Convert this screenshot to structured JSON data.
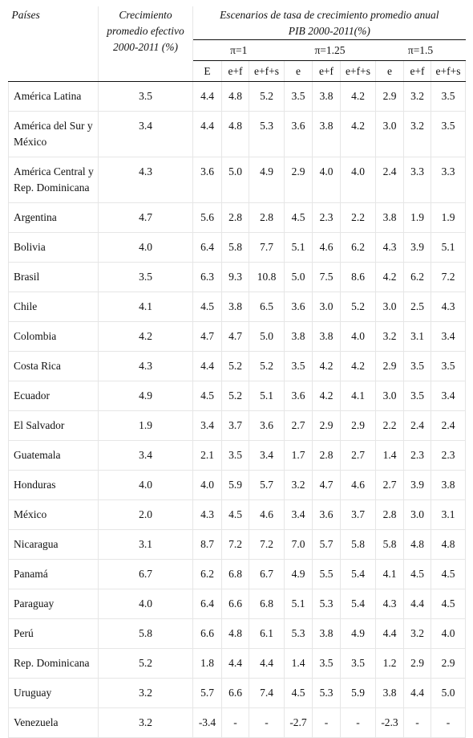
{
  "headers": {
    "country": "Países",
    "growth": "Crecimiento promedio efectivo 2000-2011 (%)",
    "scenarios_line1": "Escenarios de tasa de crecimiento promedio anual",
    "scenarios_line2": "PIB 2000-2011(%)",
    "pi_groups": [
      "π=1",
      "π=1.25",
      "π=1.5"
    ],
    "sub_cols": [
      "E",
      "e+f",
      "e+f+s",
      "e",
      "e+f",
      "e+f+s",
      "e",
      "e+f",
      "e+f+s"
    ]
  },
  "rows": [
    {
      "country": "América Latina",
      "growth": "3.5",
      "values": [
        "4.4",
        "4.8",
        "5.2",
        "3.5",
        "3.8",
        "4.2",
        "2.9",
        "3.2",
        "3.5"
      ]
    },
    {
      "country": "América del Sur y México",
      "growth": "3.4",
      "values": [
        "4.4",
        "4.8",
        "5.3",
        "3.6",
        "3.8",
        "4.2",
        "3.0",
        "3.2",
        "3.5"
      ]
    },
    {
      "country": "América Central y Rep. Dominicana",
      "growth": "4.3",
      "values": [
        "3.6",
        "5.0",
        "4.9",
        "2.9",
        "4.0",
        "4.0",
        "2.4",
        "3.3",
        "3.3"
      ]
    },
    {
      "country": "Argentina",
      "growth": "4.7",
      "values": [
        "5.6",
        "2.8",
        "2.8",
        "4.5",
        "2.3",
        "2.2",
        "3.8",
        "1.9",
        "1.9"
      ]
    },
    {
      "country": "Bolivia",
      "growth": "4.0",
      "values": [
        "6.4",
        "5.8",
        "7.7",
        "5.1",
        "4.6",
        "6.2",
        "4.3",
        "3.9",
        "5.1"
      ]
    },
    {
      "country": "Brasil",
      "growth": "3.5",
      "values": [
        "6.3",
        "9.3",
        "10.8",
        "5.0",
        "7.5",
        "8.6",
        "4.2",
        "6.2",
        "7.2"
      ]
    },
    {
      "country": "Chile",
      "growth": "4.1",
      "values": [
        "4.5",
        "3.8",
        "6.5",
        "3.6",
        "3.0",
        "5.2",
        "3.0",
        "2.5",
        "4.3"
      ]
    },
    {
      "country": "Colombia",
      "growth": "4.2",
      "values": [
        "4.7",
        "4.7",
        "5.0",
        "3.8",
        "3.8",
        "4.0",
        "3.2",
        "3.1",
        "3.4"
      ]
    },
    {
      "country": "Costa Rica",
      "growth": "4.3",
      "values": [
        "4.4",
        "5.2",
        "5.2",
        "3.5",
        "4.2",
        "4.2",
        "2.9",
        "3.5",
        "3.5"
      ]
    },
    {
      "country": "Ecuador",
      "growth": "4.9",
      "values": [
        "4.5",
        "5.2",
        "5.1",
        "3.6",
        "4.2",
        "4.1",
        "3.0",
        "3.5",
        "3.4"
      ]
    },
    {
      "country": "El Salvador",
      "growth": "1.9",
      "values": [
        "3.4",
        "3.7",
        "3.6",
        "2.7",
        "2.9",
        "2.9",
        "2.2",
        "2.4",
        "2.4"
      ]
    },
    {
      "country": "Guatemala",
      "growth": "3.4",
      "values": [
        "2.1",
        "3.5",
        "3.4",
        "1.7",
        "2.8",
        "2.7",
        "1.4",
        "2.3",
        "2.3"
      ]
    },
    {
      "country": "Honduras",
      "growth": "4.0",
      "values": [
        "4.0",
        "5.9",
        "5.7",
        "3.2",
        "4.7",
        "4.6",
        "2.7",
        "3.9",
        "3.8"
      ]
    },
    {
      "country": "México",
      "growth": "2.0",
      "values": [
        "4.3",
        "4.5",
        "4.6",
        "3.4",
        "3.6",
        "3.7",
        "2.8",
        "3.0",
        "3.1"
      ]
    },
    {
      "country": "Nicaragua",
      "growth": "3.1",
      "values": [
        "8.7",
        "7.2",
        "7.2",
        "7.0",
        "5.7",
        "5.8",
        "5.8",
        "4.8",
        "4.8"
      ]
    },
    {
      "country": "Panamá",
      "growth": "6.7",
      "values": [
        "6.2",
        "6.8",
        "6.7",
        "4.9",
        "5.5",
        "5.4",
        "4.1",
        "4.5",
        "4.5"
      ]
    },
    {
      "country": "Paraguay",
      "growth": "4.0",
      "values": [
        "6.4",
        "6.6",
        "6.8",
        "5.1",
        "5.3",
        "5.4",
        "4.3",
        "4.4",
        "4.5"
      ]
    },
    {
      "country": "Perú",
      "growth": "5.8",
      "values": [
        "6.6",
        "4.8",
        "6.1",
        "5.3",
        "3.8",
        "4.9",
        "4.4",
        "3.2",
        "4.0"
      ]
    },
    {
      "country": "Rep. Dominicana",
      "growth": "5.2",
      "values": [
        "1.8",
        "4.4",
        "4.4",
        "1.4",
        "3.5",
        "3.5",
        "1.2",
        "2.9",
        "2.9"
      ]
    },
    {
      "country": "Uruguay",
      "growth": "3.2",
      "values": [
        "5.7",
        "6.6",
        "7.4",
        "4.5",
        "5.3",
        "5.9",
        "3.8",
        "4.4",
        "5.0"
      ]
    },
    {
      "country": "Venezuela",
      "growth": "3.2",
      "values": [
        "-3.4",
        "-",
        "-",
        "-2.7",
        "-",
        "-",
        "-2.3",
        "-",
        "-"
      ]
    }
  ]
}
